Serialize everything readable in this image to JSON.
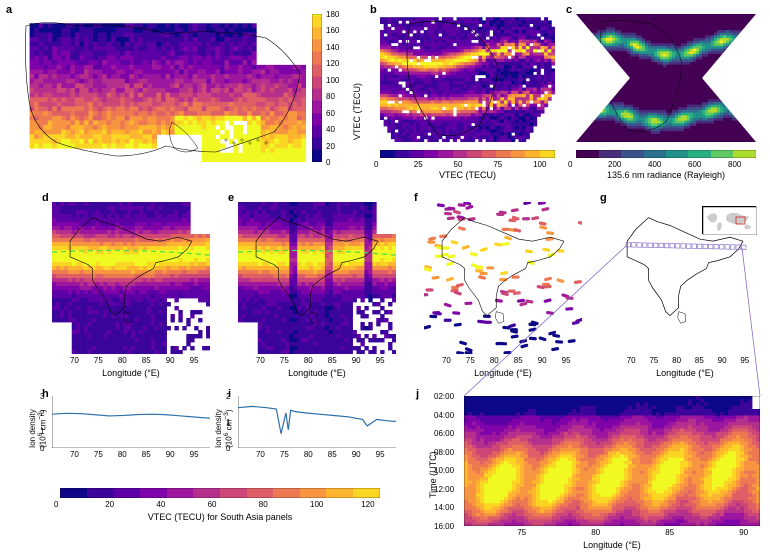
{
  "palette_plasma": [
    "#0d0887",
    "#3b049a",
    "#5c01a6",
    "#7e03a8",
    "#9c179e",
    "#b52f8c",
    "#cc4778",
    "#de5f65",
    "#ed7953",
    "#f89540",
    "#fdb42f",
    "#fbd524",
    "#f0f921"
  ],
  "palette_viridis": [
    "#440154",
    "#472d7b",
    "#3b528b",
    "#2c728e",
    "#21918c",
    "#28ae80",
    "#5ec962",
    "#addc30",
    "#fde725"
  ],
  "line_color": "#2f6fa8",
  "panel_a": {
    "label": "a",
    "cbar_label": "VTEC (TECU)",
    "cbar_ticks": [
      0,
      20,
      40,
      60,
      80,
      100,
      120,
      140,
      160,
      180
    ]
  },
  "panel_b": {
    "label": "b",
    "cbar_label": "VTEC (TECU)",
    "cbar_ticks": [
      0,
      25,
      50,
      75,
      100
    ]
  },
  "panel_c": {
    "label": "c",
    "cbar_label": "135.6 nm radiance (Rayleigh)",
    "cbar_ticks": [
      0,
      200,
      400,
      600,
      800
    ]
  },
  "panel_labels": {
    "d": "d",
    "e": "e",
    "f": "f",
    "g": "g",
    "h": "h",
    "i": "i",
    "j": "j"
  },
  "south_asia_xlabel": "Longitude (°E)",
  "south_asia_ticks": [
    70,
    75,
    80,
    85,
    90,
    95
  ],
  "ion_ylabel": "Ion density\n(10⁶ cm⁻³)",
  "panel_h": {
    "xlim": [
      65,
      98
    ],
    "ylim": [
      0,
      3
    ],
    "yticks": [
      0,
      1,
      2,
      3
    ],
    "x": [
      65,
      68,
      71,
      74,
      77,
      80,
      83,
      86,
      89,
      92,
      95,
      98
    ],
    "y": [
      1.95,
      2.0,
      1.98,
      1.92,
      1.85,
      1.88,
      1.93,
      1.95,
      1.92,
      1.85,
      1.78,
      1.72
    ]
  },
  "panel_i": {
    "xlim": [
      65,
      98
    ],
    "ylim": [
      0,
      2
    ],
    "yticks": [
      0,
      1,
      2
    ],
    "x": [
      65,
      68,
      71,
      73,
      74,
      75,
      75.5,
      76,
      77,
      79,
      82,
      85,
      88,
      91,
      92,
      94,
      96,
      98
    ],
    "y": [
      1.55,
      1.6,
      1.55,
      1.5,
      0.55,
      1.35,
      0.7,
      1.45,
      1.4,
      1.35,
      1.3,
      1.25,
      1.2,
      1.1,
      0.85,
      1.1,
      1.05,
      1.02
    ]
  },
  "panel_j": {
    "xlabel": "Longitude (°E)",
    "ylabel": "Time (UTC)",
    "xticks": [
      75,
      80,
      85,
      90
    ],
    "yticks": [
      "02:00",
      "04:00",
      "06:00",
      "08:00",
      "10:00",
      "12:00",
      "14:00",
      "16:00"
    ]
  },
  "sa_cbar": {
    "label": "VTEC (TECU) for South Asia panels",
    "ticks": [
      0,
      20,
      40,
      60,
      80,
      100,
      120
    ]
  },
  "dash_color": "#4dd84d"
}
